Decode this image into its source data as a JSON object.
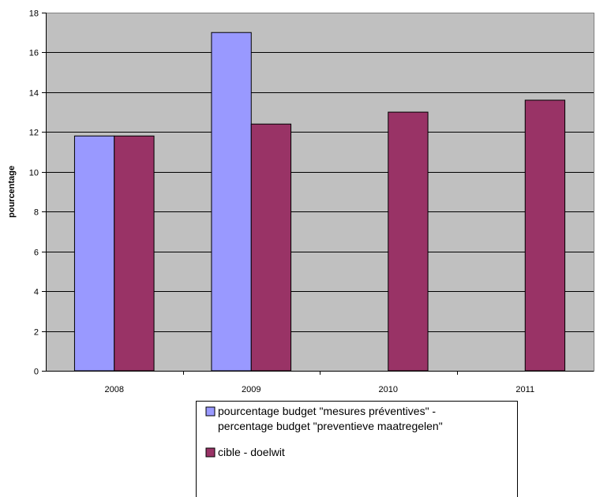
{
  "chart_data": {
    "type": "bar",
    "title": "",
    "xlabel": "",
    "ylabel": "pourcentage",
    "ylim": [
      0,
      18
    ],
    "ytick_step": 2,
    "grid": true,
    "legend_position": "bottom-right",
    "categories": [
      "2008",
      "2009",
      "2010",
      "2011"
    ],
    "series": [
      {
        "name": "pourcentage budget \"mesures préventives\" - percentage budget \"preventieve maatregelen\"",
        "legend_lines": [
          "pourcentage budget \"mesures préventives\" -",
          "percentage budget \"preventieve maatregelen\""
        ],
        "values": [
          11.8,
          17.0,
          null,
          null
        ],
        "color": "#9999FF"
      },
      {
        "name": "cible - doelwit",
        "legend_lines": [
          "cible - doelwit"
        ],
        "values": [
          11.8,
          12.4,
          13.0,
          13.6
        ],
        "color": "#993366"
      }
    ],
    "plot_background": "#C0C0C0"
  }
}
